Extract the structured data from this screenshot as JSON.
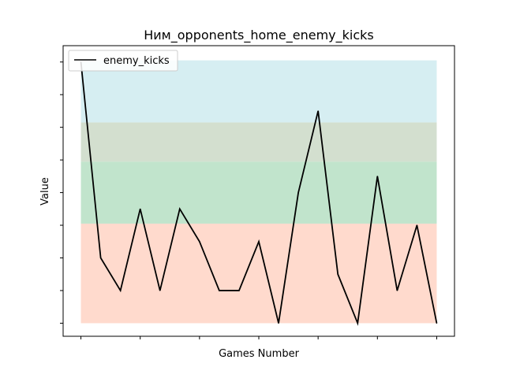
{
  "chart_data": {
    "type": "line",
    "title": "Ним_opponents_home_enemy_kicks",
    "xlabel": "Games Number",
    "ylabel": "Value",
    "x_tick_labels_visible": false,
    "y_tick_labels_visible": false,
    "legend": {
      "position": "top-left",
      "entries": [
        "enemy_kicks"
      ]
    },
    "grid": false,
    "series": [
      {
        "name": "enemy_kicks",
        "color": "#000000",
        "x": [
          0,
          1,
          2,
          3,
          4,
          5,
          6,
          7,
          8,
          9,
          10,
          11,
          12,
          13,
          14,
          15,
          16,
          17,
          18
        ],
        "values": [
          8,
          2,
          1,
          3.5,
          1,
          3.5,
          2.5,
          1,
          1,
          2.5,
          0,
          4,
          6.5,
          1.5,
          0,
          4.5,
          1,
          3,
          0
        ]
      }
    ],
    "xlim": [
      -0.9,
      18.9
    ],
    "ylim": [
      -0.4,
      8.5
    ],
    "bands": [
      {
        "from": 0,
        "to": 3.05,
        "color": "#ffdacd"
      },
      {
        "from": 3.05,
        "to": 4.95,
        "color": "#c1e4cc"
      },
      {
        "from": 4.95,
        "to": 6.15,
        "color": "#d3dfcf"
      },
      {
        "from": 6.15,
        "to": 8.05,
        "color": "#d6eef2"
      }
    ]
  }
}
